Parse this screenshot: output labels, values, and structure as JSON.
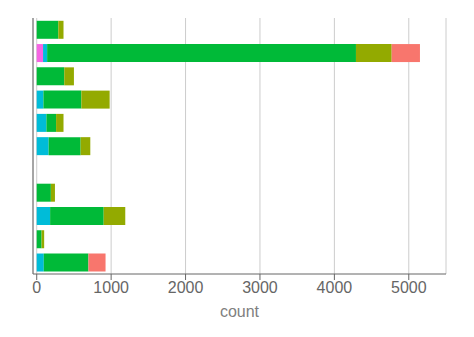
{
  "chart_data": {
    "type": "bar",
    "orientation": "horizontal",
    "stacked": true,
    "grid": true,
    "tick_labels": "x",
    "xlabel": "count",
    "categories": [
      null,
      null,
      null,
      null,
      null,
      null,
      null,
      null,
      null,
      null,
      null
    ],
    "series": [
      {
        "color": "#f564e3",
        "values": [
          null,
          85,
          null,
          null,
          null,
          null,
          null,
          null,
          null,
          null,
          null
        ]
      },
      {
        "color": "#00bcd8",
        "values": [
          null,
          55,
          null,
          90,
          130,
          160,
          null,
          null,
          180,
          null,
          95
        ]
      },
      {
        "color": "#00ba38",
        "values": [
          290,
          4150,
          370,
          510,
          130,
          430,
          null,
          190,
          720,
          65,
          600
        ]
      },
      {
        "color": "#93aa00",
        "values": [
          70,
          480,
          130,
          380,
          100,
          130,
          null,
          55,
          290,
          35,
          null
        ]
      },
      {
        "color": "#f8766d",
        "values": [
          null,
          380,
          null,
          null,
          null,
          null,
          null,
          null,
          null,
          null,
          230
        ]
      }
    ],
    "xlim": [
      -50,
      5500
    ],
    "xticks": [
      0,
      1000,
      2000,
      3000,
      4000,
      5000
    ]
  }
}
